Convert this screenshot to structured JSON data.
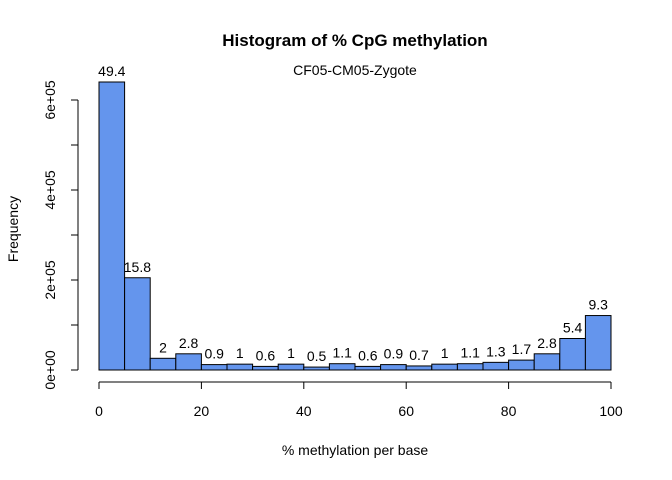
{
  "chart_data": {
    "type": "bar",
    "title": "Histogram of % CpG methylation",
    "subtitle": "CF05-CM05-Zygote",
    "xlabel": "% methylation per base",
    "ylabel": "Frequency",
    "xlim": [
      0,
      100
    ],
    "ylim": [
      0,
      650000
    ],
    "bar_color": "#6495ED",
    "bins": [
      {
        "x0": 0,
        "x1": 5,
        "value": 640000,
        "label": "49.4"
      },
      {
        "x0": 5,
        "x1": 10,
        "value": 205000,
        "label": "15.8"
      },
      {
        "x0": 10,
        "x1": 15,
        "value": 26000,
        "label": "2"
      },
      {
        "x0": 15,
        "x1": 20,
        "value": 36000,
        "label": "2.8"
      },
      {
        "x0": 20,
        "x1": 25,
        "value": 12000,
        "label": "0.9"
      },
      {
        "x0": 25,
        "x1": 30,
        "value": 13000,
        "label": "1"
      },
      {
        "x0": 30,
        "x1": 35,
        "value": 8000,
        "label": "0.6"
      },
      {
        "x0": 35,
        "x1": 40,
        "value": 13000,
        "label": "1"
      },
      {
        "x0": 40,
        "x1": 45,
        "value": 6500,
        "label": "0.5"
      },
      {
        "x0": 45,
        "x1": 50,
        "value": 14000,
        "label": "1.1"
      },
      {
        "x0": 50,
        "x1": 55,
        "value": 8000,
        "label": "0.6"
      },
      {
        "x0": 55,
        "x1": 60,
        "value": 12000,
        "label": "0.9"
      },
      {
        "x0": 60,
        "x1": 65,
        "value": 9000,
        "label": "0.7"
      },
      {
        "x0": 65,
        "x1": 70,
        "value": 13000,
        "label": "1"
      },
      {
        "x0": 70,
        "x1": 75,
        "value": 14000,
        "label": "1.1"
      },
      {
        "x0": 75,
        "x1": 80,
        "value": 17000,
        "label": "1.3"
      },
      {
        "x0": 80,
        "x1": 85,
        "value": 22000,
        "label": "1.7"
      },
      {
        "x0": 85,
        "x1": 90,
        "value": 36000,
        "label": "2.8"
      },
      {
        "x0": 90,
        "x1": 95,
        "value": 70000,
        "label": "5.4"
      },
      {
        "x0": 95,
        "x1": 100,
        "value": 121000,
        "label": "9.3"
      }
    ],
    "x_ticks": [
      0,
      20,
      40,
      60,
      80,
      100
    ],
    "x_tick_labels": [
      "0",
      "20",
      "40",
      "60",
      "80",
      "100"
    ],
    "y_ticks": [
      0,
      100000,
      200000,
      300000,
      400000,
      500000,
      600000
    ],
    "y_tick_labels": [
      "0e+00",
      "",
      "2e+05",
      "",
      "4e+05",
      "",
      "6e+05"
    ],
    "grid": false,
    "legend": "none"
  }
}
